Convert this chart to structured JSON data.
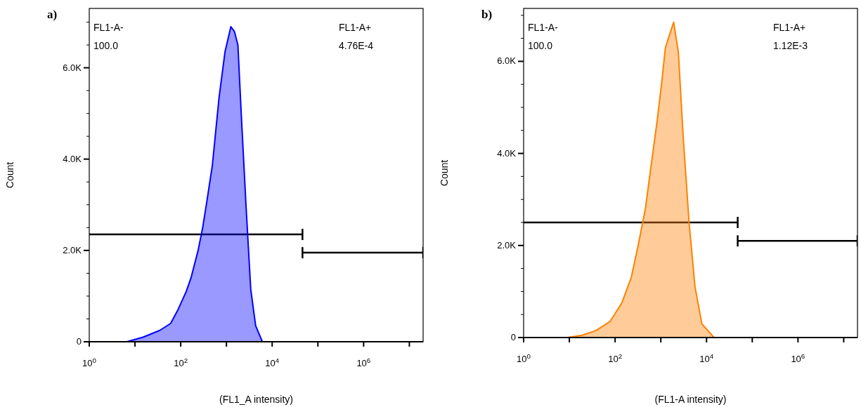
{
  "chart_data": [
    {
      "type": "area",
      "title": "a)",
      "xlabel": "(FL1_A intensity)",
      "ylabel": "Count",
      "log": "x",
      "grid": false,
      "xlim": [
        1,
        20000000
      ],
      "ylim": [
        0,
        7300
      ],
      "xticks": [
        {
          "value": 1,
          "label": "10$^{0}$"
        },
        {
          "value": 10,
          "label": null
        },
        {
          "value": 100,
          "label": "10$^{2}$"
        },
        {
          "value": 1000,
          "label": null
        },
        {
          "value": 10000,
          "label": "10$^{4}$"
        },
        {
          "value": 100000,
          "label": null
        },
        {
          "value": 1000000,
          "label": "10$^{6}$"
        },
        {
          "value": 10000000,
          "label": null
        }
      ],
      "yticks": [
        {
          "value": 0,
          "label": "0"
        },
        {
          "value": 500,
          "label": null
        },
        {
          "value": 1000,
          "label": null
        },
        {
          "value": 1500,
          "label": null
        },
        {
          "value": 2000,
          "label": "2.0K"
        },
        {
          "value": 2500,
          "label": null
        },
        {
          "value": 3000,
          "label": null
        },
        {
          "value": 3500,
          "label": null
        },
        {
          "value": 4000,
          "label": "4.0K"
        },
        {
          "value": 4500,
          "label": null
        },
        {
          "value": 5000,
          "label": null
        },
        {
          "value": 5500,
          "label": null
        },
        {
          "value": 6000,
          "label": "6.0K"
        },
        {
          "value": 6500,
          "label": null
        },
        {
          "value": 7000,
          "label": null
        }
      ],
      "annotations": [
        "FL1-A-",
        "100.0",
        "FL1-A+",
        "4.76E-4"
      ],
      "series": [
        {
          "type": "line",
          "color": "#000000",
          "x": [
            1,
            46000
          ],
          "values": [
            2350,
            2350
          ]
        },
        {
          "type": "line",
          "color": "#000000",
          "x": [
            46000,
            20000000
          ],
          "values": [
            1950,
            1950
          ]
        },
        {
          "color": "#0000ff",
          "x": [
            1,
            2,
            6.6,
            15,
            35,
            60,
            87,
            132,
            168,
            240,
            302,
            363,
            490,
            690,
            930,
            1250,
            1490,
            1780,
            2130,
            2690,
            3400,
            4350,
            6100,
            20000000
          ],
          "values": [
            0,
            0,
            0,
            100,
            250,
            400,
            700,
            1100,
            1400,
            2000,
            2500,
            3000,
            3850,
            5350,
            6350,
            6900,
            6800,
            6500,
            4900,
            2950,
            1150,
            350,
            0,
            0
          ]
        }
      ]
    },
    {
      "type": "area",
      "title": "b)",
      "xlabel": "(FL1-A intensity)",
      "ylabel": "Count",
      "log": "x",
      "grid": false,
      "xlim": [
        1,
        20000000
      ],
      "ylim": [
        0,
        7150
      ],
      "xticks": [
        {
          "value": 1,
          "label": "10$^{0}$"
        },
        {
          "value": 10,
          "label": null
        },
        {
          "value": 100,
          "label": "10$^{2}$"
        },
        {
          "value": 1000,
          "label": null
        },
        {
          "value": 10000,
          "label": "10$^{4}$"
        },
        {
          "value": 100000,
          "label": null
        },
        {
          "value": 1000000,
          "label": "10$^{6}$"
        },
        {
          "value": 10000000,
          "label": null
        }
      ],
      "yticks": [
        {
          "value": 0,
          "label": "0"
        },
        {
          "value": 500,
          "label": null
        },
        {
          "value": 1000,
          "label": null
        },
        {
          "value": 1500,
          "label": null
        },
        {
          "value": 2000,
          "label": "2.0K"
        },
        {
          "value": 2500,
          "label": null
        },
        {
          "value": 3000,
          "label": null
        },
        {
          "value": 3500,
          "label": null
        },
        {
          "value": 4000,
          "label": "4.0K"
        },
        {
          "value": 4500,
          "label": null
        },
        {
          "value": 5000,
          "label": null
        },
        {
          "value": 5500,
          "label": null
        },
        {
          "value": 6000,
          "label": "6.0K"
        },
        {
          "value": 6500,
          "label": null
        },
        {
          "value": 7000,
          "label": null
        }
      ],
      "annotations": [
        "FL1-A-",
        "100.0",
        "FL1-A+",
        "1.12E-3"
      ],
      "series": [
        {
          "type": "line",
          "color": "#000000",
          "x": [
            1,
            48000
          ],
          "values": [
            2500,
            2500
          ]
        },
        {
          "type": "line",
          "color": "#000000",
          "x": [
            48000,
            20000000
          ],
          "values": [
            2100,
            2100
          ]
        },
        {
          "color": "#ff8000",
          "x": [
            1,
            9,
            19,
            38,
            78,
            140,
            225,
            320,
            460,
            580,
            830,
            1050,
            1260,
            1910,
            2420,
            3090,
            4150,
            5600,
            7900,
            14500,
            20000,
            20000000
          ],
          "values": [
            0,
            0,
            50,
            150,
            350,
            750,
            1300,
            2000,
            2800,
            3550,
            4700,
            5550,
            6300,
            6850,
            6200,
            4350,
            2500,
            1100,
            300,
            0,
            0,
            0
          ]
        }
      ]
    }
  ]
}
